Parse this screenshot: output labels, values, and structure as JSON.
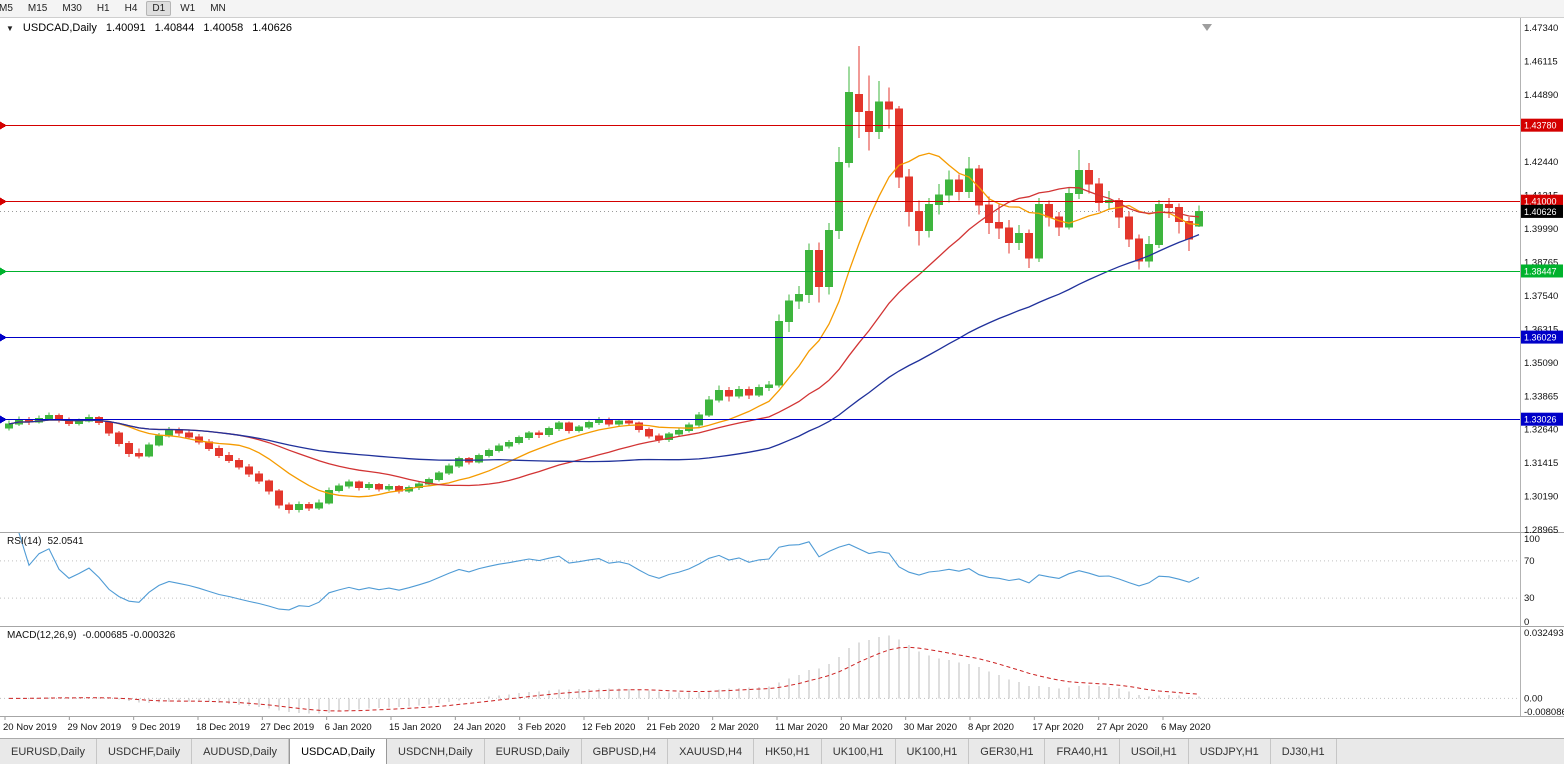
{
  "toolbar": {
    "timeframes": [
      "M5",
      "M15",
      "M30",
      "H1",
      "H4",
      "D1",
      "W1",
      "MN"
    ],
    "active": "D1"
  },
  "chart_header": {
    "dropdown_icon": "▼",
    "title": "USDCAD,Daily",
    "open": "1.40091",
    "high": "1.40844",
    "low": "1.40058",
    "close": "1.40626"
  },
  "chart_data": {
    "type": "candlestick",
    "symbol": "USDCAD",
    "timeframe": "Daily",
    "up_color": "#3eb53e",
    "down_color": "#e3362c",
    "price_max": 1.477,
    "price_min": 1.289,
    "y_axis_labels": [
      "1.47340",
      "1.46115",
      "1.44890",
      "1.43665",
      "1.42440",
      "1.41215",
      "1.39990",
      "1.38765",
      "1.37540",
      "1.36315",
      "1.35090",
      "1.33865",
      "1.32640",
      "1.31415",
      "1.30190",
      "1.28965"
    ],
    "x_labels": [
      "20 Nov 2019",
      "29 Nov 2019",
      "9 Dec 2019",
      "18 Dec 2019",
      "27 Dec 2019",
      "6 Jan 2020",
      "15 Jan 2020",
      "24 Jan 2020",
      "3 Feb 2020",
      "12 Feb 2020",
      "21 Feb 2020",
      "2 Mar 2020",
      "11 Mar 2020",
      "20 Mar 2020",
      "30 Mar 2020",
      "8 Apr 2020",
      "17 Apr 2020",
      "27 Apr 2020",
      "6 May 2020"
    ],
    "candles": [
      [
        1.327,
        1.3298,
        1.3262,
        1.3285
      ],
      [
        1.3285,
        1.3312,
        1.3278,
        1.33
      ],
      [
        1.33,
        1.331,
        1.3281,
        1.3292
      ],
      [
        1.3292,
        1.3316,
        1.3286,
        1.3305
      ],
      [
        1.3305,
        1.3327,
        1.3298,
        1.3316
      ],
      [
        1.3316,
        1.3324,
        1.329,
        1.3299
      ],
      [
        1.3299,
        1.3308,
        1.3278,
        1.3287
      ],
      [
        1.3287,
        1.3305,
        1.328,
        1.3296
      ],
      [
        1.3296,
        1.332,
        1.329,
        1.3309
      ],
      [
        1.3309,
        1.3315,
        1.3282,
        1.329
      ],
      [
        1.329,
        1.3296,
        1.3242,
        1.3252
      ],
      [
        1.3252,
        1.326,
        1.3202,
        1.3214
      ],
      [
        1.3214,
        1.3222,
        1.3164,
        1.3178
      ],
      [
        1.3178,
        1.3196,
        1.3158,
        1.3168
      ],
      [
        1.3168,
        1.3218,
        1.3162,
        1.3208
      ],
      [
        1.3208,
        1.3252,
        1.3202,
        1.3242
      ],
      [
        1.3242,
        1.3274,
        1.3236,
        1.3264
      ],
      [
        1.3264,
        1.3272,
        1.3242,
        1.3252
      ],
      [
        1.3252,
        1.3262,
        1.3228,
        1.3238
      ],
      [
        1.3238,
        1.3248,
        1.321,
        1.322
      ],
      [
        1.322,
        1.323,
        1.3186,
        1.3196
      ],
      [
        1.3196,
        1.3206,
        1.316,
        1.317
      ],
      [
        1.317,
        1.3182,
        1.3142,
        1.3152
      ],
      [
        1.3152,
        1.316,
        1.3118,
        1.3128
      ],
      [
        1.3128,
        1.3138,
        1.3092,
        1.3102
      ],
      [
        1.3102,
        1.3114,
        1.3066,
        1.3076
      ],
      [
        1.3076,
        1.3082,
        1.3028,
        1.304
      ],
      [
        1.304,
        1.3048,
        1.2976,
        1.2988
      ],
      [
        1.2988,
        1.2998,
        1.2958,
        1.2972
      ],
      [
        1.2972,
        1.3002,
        1.2962,
        1.299
      ],
      [
        1.299,
        1.2999,
        1.2966,
        1.2978
      ],
      [
        1.2978,
        1.3008,
        1.297,
        1.2996
      ],
      [
        1.2996,
        1.3052,
        1.299,
        1.3042
      ],
      [
        1.3042,
        1.3068,
        1.3034,
        1.3058
      ],
      [
        1.3058,
        1.3082,
        1.305,
        1.3072
      ],
      [
        1.3072,
        1.3078,
        1.3042,
        1.3052
      ],
      [
        1.3052,
        1.3072,
        1.3044,
        1.3063
      ],
      [
        1.3063,
        1.307,
        1.3038,
        1.3048
      ],
      [
        1.3048,
        1.3066,
        1.304,
        1.3056
      ],
      [
        1.3056,
        1.3062,
        1.303,
        1.304
      ],
      [
        1.304,
        1.306,
        1.3032,
        1.3052
      ],
      [
        1.3052,
        1.3074,
        1.3044,
        1.3066
      ],
      [
        1.3066,
        1.309,
        1.3058,
        1.3082
      ],
      [
        1.3082,
        1.3113,
        1.3074,
        1.3105
      ],
      [
        1.3105,
        1.314,
        1.3098,
        1.3132
      ],
      [
        1.3132,
        1.3166,
        1.3124,
        1.3158
      ],
      [
        1.3158,
        1.3165,
        1.3136,
        1.3146
      ],
      [
        1.3146,
        1.3178,
        1.314,
        1.317
      ],
      [
        1.317,
        1.3196,
        1.3162,
        1.3188
      ],
      [
        1.3188,
        1.3213,
        1.318,
        1.3205
      ],
      [
        1.3205,
        1.3226,
        1.3196,
        1.3218
      ],
      [
        1.3218,
        1.3243,
        1.321,
        1.3235
      ],
      [
        1.3235,
        1.326,
        1.3226,
        1.3252
      ],
      [
        1.3252,
        1.3262,
        1.3234,
        1.3246
      ],
      [
        1.3246,
        1.3276,
        1.3238,
        1.3268
      ],
      [
        1.3268,
        1.3296,
        1.326,
        1.3288
      ],
      [
        1.3288,
        1.3295,
        1.325,
        1.3262
      ],
      [
        1.3262,
        1.3282,
        1.3254,
        1.3274
      ],
      [
        1.3274,
        1.3298,
        1.3266,
        1.329
      ],
      [
        1.329,
        1.331,
        1.3282,
        1.3302
      ],
      [
        1.3302,
        1.3309,
        1.3276,
        1.3285
      ],
      [
        1.3285,
        1.3304,
        1.3277,
        1.3296
      ],
      [
        1.3296,
        1.3303,
        1.3278,
        1.3288
      ],
      [
        1.3288,
        1.3295,
        1.3254,
        1.3265
      ],
      [
        1.3265,
        1.3273,
        1.3232,
        1.3242
      ],
      [
        1.3242,
        1.325,
        1.3216,
        1.3228
      ],
      [
        1.3228,
        1.3256,
        1.322,
        1.3248
      ],
      [
        1.3248,
        1.327,
        1.324,
        1.3262
      ],
      [
        1.3262,
        1.329,
        1.3254,
        1.3282
      ],
      [
        1.3282,
        1.3328,
        1.3274,
        1.3318
      ],
      [
        1.3318,
        1.3388,
        1.331,
        1.3372
      ],
      [
        1.3372,
        1.3426,
        1.3364,
        1.3408
      ],
      [
        1.3408,
        1.342,
        1.3368,
        1.3388
      ],
      [
        1.3388,
        1.3424,
        1.3378,
        1.3412
      ],
      [
        1.3412,
        1.3422,
        1.3376,
        1.3392
      ],
      [
        1.3392,
        1.343,
        1.3384,
        1.3418
      ],
      [
        1.3418,
        1.3442,
        1.3406,
        1.3428
      ],
      [
        1.3428,
        1.3685,
        1.3418,
        1.366
      ],
      [
        1.366,
        1.3758,
        1.3622,
        1.3735
      ],
      [
        1.3735,
        1.379,
        1.3706,
        1.3758
      ],
      [
        1.3758,
        1.3945,
        1.3728,
        1.392
      ],
      [
        1.392,
        1.3948,
        1.373,
        1.3788
      ],
      [
        1.3788,
        1.402,
        1.3758,
        1.3992
      ],
      [
        1.3992,
        1.4298,
        1.3962,
        1.4242
      ],
      [
        1.4242,
        1.4592,
        1.4224,
        1.4498
      ],
      [
        1.449,
        1.4668,
        1.4332,
        1.4428
      ],
      [
        1.4428,
        1.456,
        1.4286,
        1.4355
      ],
      [
        1.4355,
        1.454,
        1.4328,
        1.4462
      ],
      [
        1.4462,
        1.4516,
        1.4365,
        1.4438
      ],
      [
        1.4438,
        1.4448,
        1.4148,
        1.4188
      ],
      [
        1.4188,
        1.4218,
        1.4008,
        1.4062
      ],
      [
        1.4062,
        1.4102,
        1.3938,
        1.3992
      ],
      [
        1.3992,
        1.4112,
        1.3968,
        1.4088
      ],
      [
        1.4088,
        1.4162,
        1.4052,
        1.4122
      ],
      [
        1.4122,
        1.4212,
        1.4096,
        1.4178
      ],
      [
        1.4178,
        1.4198,
        1.4102,
        1.4136
      ],
      [
        1.4136,
        1.4262,
        1.4112,
        1.4218
      ],
      [
        1.4218,
        1.4232,
        1.4052,
        1.4086
      ],
      [
        1.4086,
        1.4118,
        1.398,
        1.4022
      ],
      [
        1.4022,
        1.4088,
        1.3962,
        1.4002
      ],
      [
        1.4002,
        1.4032,
        1.3908,
        1.3948
      ],
      [
        1.3948,
        1.4012,
        1.3922,
        1.3982
      ],
      [
        1.3982,
        1.3996,
        1.3856,
        1.3892
      ],
      [
        1.3892,
        1.4112,
        1.3878,
        1.4088
      ],
      [
        1.4088,
        1.4102,
        1.4008,
        1.4042
      ],
      [
        1.4042,
        1.406,
        1.3972,
        1.4006
      ],
      [
        1.4006,
        1.4152,
        1.3996,
        1.4128
      ],
      [
        1.4128,
        1.4288,
        1.4108,
        1.4212
      ],
      [
        1.4212,
        1.424,
        1.4128,
        1.4162
      ],
      [
        1.4162,
        1.4184,
        1.4062,
        1.4096
      ],
      [
        1.4096,
        1.4138,
        1.4068,
        1.4102
      ],
      [
        1.4102,
        1.4112,
        1.4002,
        1.4042
      ],
      [
        1.4042,
        1.4062,
        1.3932,
        1.3962
      ],
      [
        1.3962,
        1.3978,
        1.385,
        1.3882
      ],
      [
        1.3882,
        1.3972,
        1.3858,
        1.3942
      ],
      [
        1.3942,
        1.4105,
        1.3928,
        1.4088
      ],
      [
        1.4088,
        1.4112,
        1.4038,
        1.4076
      ],
      [
        1.4076,
        1.4092,
        1.3982,
        1.4026
      ],
      [
        1.4026,
        1.4042,
        1.3918,
        1.3962
      ],
      [
        1.40091,
        1.40844,
        1.40058,
        1.40626
      ]
    ],
    "moving_averages": [
      {
        "name": "ma-fast",
        "period": 10,
        "color": "#f59b00"
      },
      {
        "name": "ma-mid",
        "period": 24,
        "color": "#d23434"
      },
      {
        "name": "ma-slow",
        "period": 50,
        "color": "#20319b"
      }
    ],
    "horizontal_lines": [
      {
        "price": 1.4378,
        "label": "1.43780",
        "color": "#d40000"
      },
      {
        "price": 1.41,
        "label": "1.41000",
        "color": "#d40000"
      },
      {
        "price": 1.38447,
        "label": "1.38447",
        "color": "#00b22d"
      },
      {
        "price": 1.36029,
        "label": "1.36029",
        "color": "#0000c8"
      },
      {
        "price": 1.33026,
        "label": "1.33026",
        "color": "#0000c8"
      }
    ],
    "current_price": {
      "value": 1.40626,
      "label": "1.40626",
      "badge_color": "#000000"
    },
    "rsi_panel": {
      "label": "RSI(14)",
      "value": "52.0541",
      "period": 14,
      "levels": [
        "100",
        "70",
        "30",
        "0"
      ],
      "line_color": "#4f9bd5"
    },
    "macd_panel": {
      "label": "MACD(12,26,9)",
      "values": "-0.000685 -0.000326",
      "axis_labels": [
        "0.032493",
        "0.00",
        "-0.008086"
      ],
      "axis_values": [
        0.032493,
        0.0,
        -0.008086
      ],
      "hist_color": "#bdbdbd",
      "signal_color": "#cc2222"
    }
  },
  "tabbar": {
    "tabs": [
      {
        "label": "EURUSD,Daily",
        "active": false
      },
      {
        "label": "USDCHF,Daily",
        "active": false
      },
      {
        "label": "AUDUSD,Daily",
        "active": false
      },
      {
        "label": "USDCAD,Daily",
        "active": true
      },
      {
        "label": "USDCNH,Daily",
        "active": false
      },
      {
        "label": "EURUSD,Daily",
        "active": false
      },
      {
        "label": "GBPUSD,H4",
        "active": false
      },
      {
        "label": "XAUUSD,H4",
        "active": false
      },
      {
        "label": "HK50,H1",
        "active": false
      },
      {
        "label": "UK100,H1",
        "active": false
      },
      {
        "label": "UK100,H1",
        "active": false
      },
      {
        "label": "GER30,H1",
        "active": false
      },
      {
        "label": "FRA40,H1",
        "active": false
      },
      {
        "label": "USOil,H1",
        "active": false
      },
      {
        "label": "USDJPY,H1",
        "active": false
      },
      {
        "label": "DJ30,H1",
        "active": false
      }
    ]
  }
}
